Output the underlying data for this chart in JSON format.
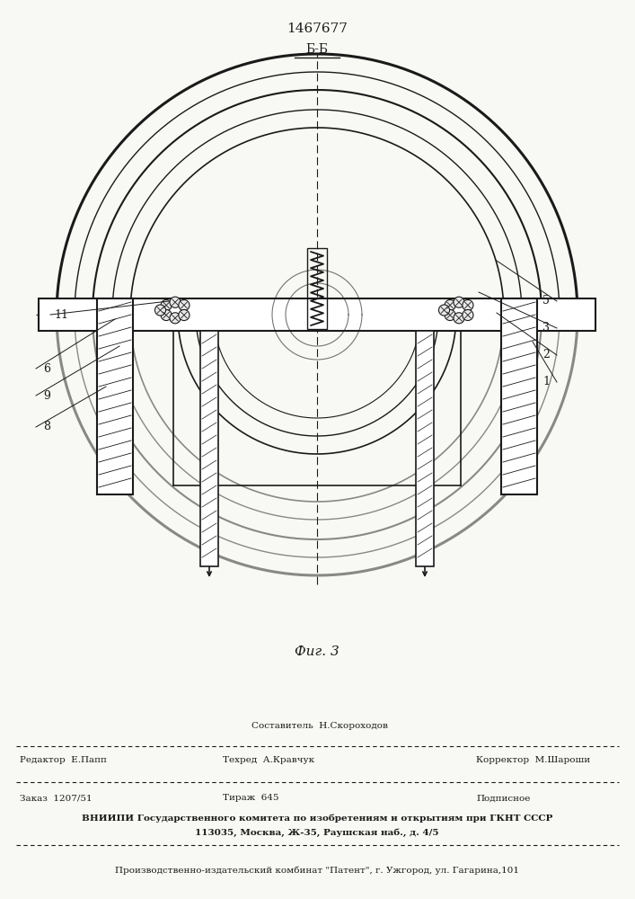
{
  "patent_number": "1467677",
  "section_label": "Б-Б",
  "figure_label": "Фиг. 3",
  "bg_color": "#f8f8f4",
  "line_color": "#1a1a1a",
  "footer_sestavitel": "Составитель  Н.Скороходов",
  "footer_redaktor": "Редактор  Е.Папп",
  "footer_tehred": "Техред  А.Кравчук",
  "footer_korrektor": "Корректор  М.Шароши",
  "footer_order": "Заказ  1207/51",
  "footer_tirazh": "Тираж  645",
  "footer_podpisnoe": "Подписное",
  "footer_vniipи": "ВНИИПИ Государственного комитета по изобретениям и открытиям при ГКНТ СССР",
  "footer_address": "113035, Москва, Ж-35, Раушская наб., д. 4/5",
  "footer_patent": "Производственно-издательский комбинат \"Патент\", г. Ужгород, ул. Гагарина,101"
}
